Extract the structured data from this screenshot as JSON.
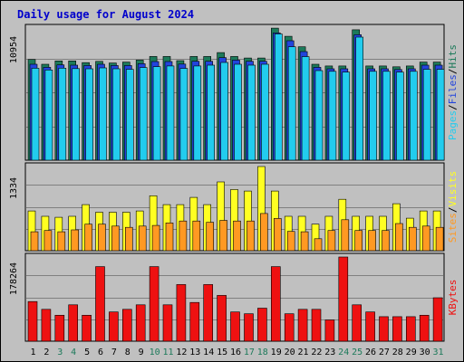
{
  "title": "Daily usage for August 2024",
  "colors": {
    "background": "#c0c0c0",
    "hits": "#1c7a5a",
    "files": "#2244dd",
    "pages": "#22ccee",
    "visits": "#ffff22",
    "sites": "#ff9922",
    "kbytes": "#ee1111",
    "title": "#0000cc",
    "weekend_day": "#1c7a5a",
    "weekday": "#000000"
  },
  "chart_data": [
    {
      "type": "bar",
      "name": "hits-files-pages",
      "max_label": "10954",
      "legend": [
        "Pages",
        "/",
        "Files",
        "/",
        "Hits"
      ],
      "ylim": [
        0,
        10954
      ],
      "categories": [
        "1",
        "2",
        "3",
        "4",
        "5",
        "6",
        "7",
        "8",
        "9",
        "10",
        "11",
        "12",
        "13",
        "14",
        "15",
        "16",
        "17",
        "18",
        "19",
        "20",
        "21",
        "22",
        "23",
        "24",
        "25",
        "26",
        "27",
        "28",
        "29",
        "30",
        "31"
      ],
      "series": [
        {
          "name": "Hits",
          "values": [
            8350,
            7950,
            8230,
            8230,
            8090,
            8190,
            8060,
            8130,
            8300,
            8600,
            8600,
            8250,
            8600,
            8600,
            8920,
            8600,
            8470,
            8470,
            10950,
            10270,
            9400,
            7950,
            7810,
            7810,
            10810,
            7810,
            7810,
            7740,
            7810,
            8130,
            8130
          ]
        },
        {
          "name": "Files",
          "values": [
            7950,
            7700,
            7900,
            7880,
            7850,
            7950,
            7850,
            7850,
            8000,
            8180,
            8180,
            7970,
            8200,
            8200,
            8500,
            8300,
            8200,
            8200,
            10550,
            9900,
            9000,
            7700,
            7580,
            7580,
            10400,
            7580,
            7580,
            7520,
            7580,
            7880,
            7880
          ]
        },
        {
          "name": "Pages",
          "values": [
            7620,
            7480,
            7630,
            7590,
            7580,
            7650,
            7580,
            7530,
            7680,
            7750,
            7810,
            7610,
            7810,
            7880,
            8100,
            7950,
            7880,
            7950,
            10470,
            9400,
            8580,
            7430,
            7370,
            7300,
            10200,
            7370,
            7370,
            7300,
            7370,
            7530,
            7530
          ]
        }
      ]
    },
    {
      "type": "bar",
      "name": "visits-sites",
      "max_label": "1334",
      "legend": [
        "Sites",
        "/",
        "Visits"
      ],
      "ylim": [
        0,
        1334
      ],
      "categories": [
        "1",
        "2",
        "3",
        "4",
        "5",
        "6",
        "7",
        "8",
        "9",
        "10",
        "11",
        "12",
        "13",
        "14",
        "15",
        "16",
        "17",
        "18",
        "19",
        "20",
        "21",
        "22",
        "23",
        "24",
        "25",
        "26",
        "27",
        "28",
        "29",
        "30",
        "31"
      ],
      "series": [
        {
          "name": "Visits",
          "values": [
            630,
            545,
            530,
            545,
            730,
            610,
            610,
            610,
            630,
            870,
            730,
            730,
            845,
            730,
            1090,
            970,
            945,
            1334,
            945,
            545,
            545,
            420,
            545,
            815,
            545,
            545,
            545,
            745,
            515,
            630,
            630
          ]
        },
        {
          "name": "Sites",
          "values": [
            300,
            320,
            300,
            330,
            420,
            420,
            390,
            370,
            390,
            400,
            440,
            470,
            470,
            450,
            480,
            470,
            470,
            590,
            510,
            305,
            300,
            190,
            320,
            490,
            320,
            320,
            320,
            430,
            370,
            390,
            370
          ]
        }
      ]
    },
    {
      "type": "bar",
      "name": "kbytes",
      "max_label": "178264",
      "legend": [
        "KBytes"
      ],
      "ylim": [
        0,
        178264
      ],
      "categories": [
        "1",
        "2",
        "3",
        "4",
        "5",
        "6",
        "7",
        "8",
        "9",
        "10",
        "11",
        "12",
        "13",
        "14",
        "15",
        "16",
        "17",
        "18",
        "19",
        "20",
        "21",
        "22",
        "23",
        "24",
        "25",
        "26",
        "27",
        "28",
        "29",
        "30",
        "31"
      ],
      "series": [
        {
          "name": "KBytes",
          "values": [
            84000,
            67500,
            55000,
            77000,
            55000,
            158000,
            62000,
            67500,
            77000,
            158000,
            77000,
            120000,
            82000,
            120000,
            97000,
            62000,
            58000,
            70000,
            158000,
            58000,
            67500,
            67500,
            45000,
            178264,
            77000,
            62000,
            52000,
            52000,
            52000,
            55000,
            92000
          ]
        }
      ]
    }
  ],
  "day_labels": [
    "1",
    "2",
    "3",
    "4",
    "5",
    "6",
    "7",
    "8",
    "9",
    "10",
    "11",
    "12",
    "13",
    "14",
    "15",
    "16",
    "17",
    "18",
    "19",
    "20",
    "21",
    "22",
    "23",
    "24",
    "25",
    "26",
    "27",
    "28",
    "29",
    "30",
    "31"
  ],
  "weekend_days": [
    3,
    4,
    10,
    11,
    17,
    18,
    24,
    25,
    31
  ]
}
